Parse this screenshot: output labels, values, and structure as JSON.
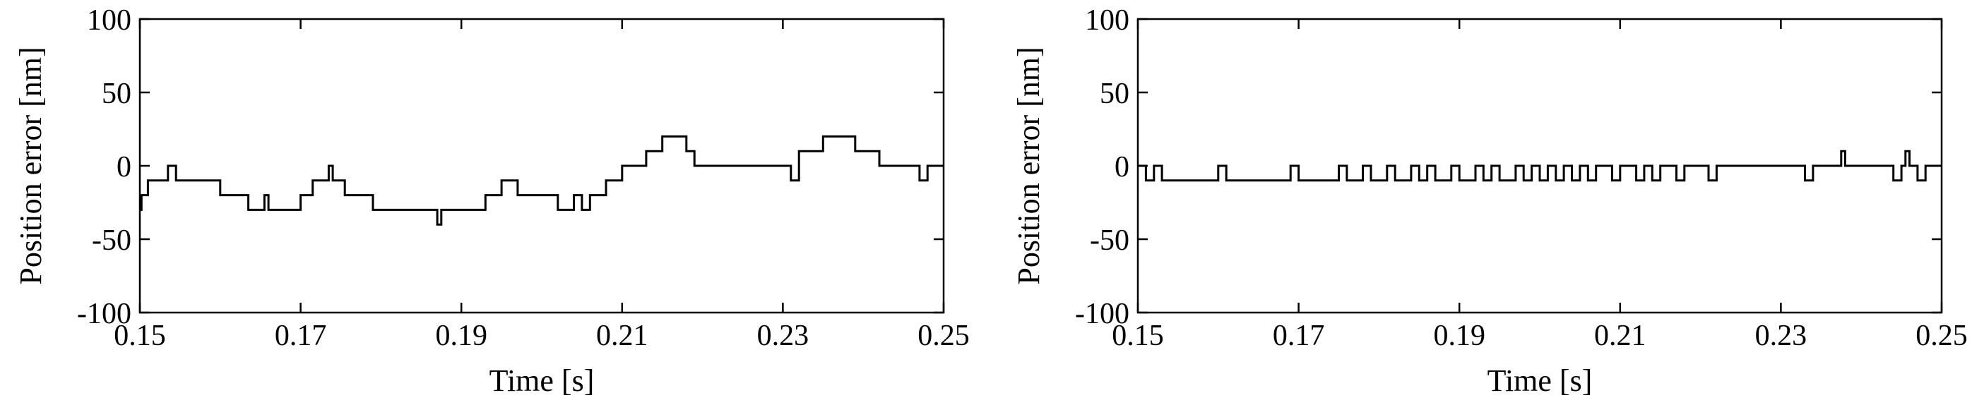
{
  "chart_data": [
    {
      "type": "line",
      "xlabel": "Time [s]",
      "ylabel": "Position error [nm]",
      "xlim": [
        0.15,
        0.25
      ],
      "ylim": [
        -100,
        100
      ],
      "xticks": [
        0.15,
        0.17,
        0.19,
        0.21,
        0.23,
        0.25
      ],
      "xtick_labels": [
        "0.15",
        "0.17",
        "0.19",
        "0.21",
        "0.23",
        "0.25"
      ],
      "yticks": [
        -100,
        -50,
        0,
        50,
        100
      ],
      "ytick_labels": [
        "-100",
        "-50",
        "0",
        "50",
        "100"
      ],
      "grid": false,
      "series": [
        {
          "color": "#000000",
          "x": [
            0.15,
            0.1502,
            0.1505,
            0.151,
            0.1515,
            0.1525,
            0.153,
            0.1535,
            0.1545,
            0.1555,
            0.156,
            0.157,
            0.158,
            0.159,
            0.16,
            0.1605,
            0.1615,
            0.1625,
            0.1635,
            0.1645,
            0.1655,
            0.166,
            0.167,
            0.168,
            0.169,
            0.17,
            0.171,
            0.1715,
            0.1725,
            0.1735,
            0.174,
            0.175,
            0.1755,
            0.176,
            0.177,
            0.178,
            0.179,
            0.18,
            0.181,
            0.182,
            0.183,
            0.184,
            0.185,
            0.186,
            0.187,
            0.1875,
            0.188,
            0.189,
            0.19,
            0.191,
            0.192,
            0.193,
            0.194,
            0.195,
            0.196,
            0.197,
            0.198,
            0.199,
            0.2,
            0.201,
            0.202,
            0.203,
            0.204,
            0.205,
            0.206,
            0.207,
            0.208,
            0.209,
            0.21,
            0.211,
            0.212,
            0.213,
            0.214,
            0.215,
            0.216,
            0.217,
            0.218,
            0.219,
            0.22,
            0.221,
            0.222,
            0.223,
            0.224,
            0.225,
            0.226,
            0.227,
            0.228,
            0.229,
            0.23,
            0.231,
            0.232,
            0.233,
            0.234,
            0.235,
            0.236,
            0.237,
            0.238,
            0.239,
            0.24,
            0.241,
            0.242,
            0.243,
            0.244,
            0.245,
            0.246,
            0.247,
            0.248,
            0.249,
            0.25
          ],
          "y": [
            -30,
            -20,
            -20,
            -10,
            -10,
            -10,
            -10,
            0,
            -10,
            -10,
            -10,
            -10,
            -10,
            -10,
            -20,
            -20,
            -20,
            -20,
            -30,
            -30,
            -20,
            -30,
            -30,
            -30,
            -30,
            -20,
            -20,
            -10,
            -10,
            0,
            -10,
            -10,
            -20,
            -20,
            -20,
            -20,
            -30,
            -30,
            -30,
            -30,
            -30,
            -30,
            -30,
            -30,
            -40,
            -30,
            -30,
            -30,
            -30,
            -30,
            -30,
            -20,
            -20,
            -10,
            -10,
            -20,
            -20,
            -20,
            -20,
            -20,
            -30,
            -30,
            -20,
            -30,
            -20,
            -20,
            -10,
            -10,
            0,
            0,
            0,
            10,
            10,
            20,
            20,
            20,
            10,
            0,
            0,
            0,
            0,
            0,
            0,
            0,
            0,
            0,
            0,
            0,
            0,
            -10,
            10,
            10,
            10,
            20,
            20,
            20,
            20,
            10,
            10,
            10,
            0,
            0,
            0,
            0,
            0,
            -10,
            0,
            0,
            0
          ]
        }
      ]
    },
    {
      "type": "line",
      "xlabel": "Time [s]",
      "ylabel": "Position error [nm]",
      "xlim": [
        0.15,
        0.25
      ],
      "ylim": [
        -100,
        100
      ],
      "xticks": [
        0.15,
        0.17,
        0.19,
        0.21,
        0.23,
        0.25
      ],
      "xtick_labels": [
        "0.15",
        "0.17",
        "0.19",
        "0.21",
        "0.23",
        "0.25"
      ],
      "yticks": [
        -100,
        -50,
        0,
        50,
        100
      ],
      "ytick_labels": [
        "-100",
        "-50",
        "0",
        "50",
        "100"
      ],
      "grid": false,
      "series": [
        {
          "color": "#000000",
          "x": [
            0.15,
            0.151,
            0.152,
            0.153,
            0.154,
            0.155,
            0.156,
            0.157,
            0.158,
            0.159,
            0.16,
            0.161,
            0.162,
            0.163,
            0.164,
            0.165,
            0.166,
            0.167,
            0.168,
            0.169,
            0.17,
            0.171,
            0.172,
            0.173,
            0.174,
            0.175,
            0.176,
            0.177,
            0.178,
            0.179,
            0.18,
            0.181,
            0.182,
            0.183,
            0.184,
            0.185,
            0.186,
            0.187,
            0.188,
            0.189,
            0.19,
            0.191,
            0.192,
            0.193,
            0.194,
            0.195,
            0.196,
            0.197,
            0.198,
            0.199,
            0.2,
            0.201,
            0.202,
            0.203,
            0.204,
            0.205,
            0.206,
            0.207,
            0.208,
            0.209,
            0.21,
            0.211,
            0.212,
            0.213,
            0.214,
            0.215,
            0.216,
            0.217,
            0.218,
            0.219,
            0.22,
            0.221,
            0.222,
            0.223,
            0.224,
            0.225,
            0.226,
            0.227,
            0.228,
            0.229,
            0.23,
            0.231,
            0.232,
            0.233,
            0.234,
            0.235,
            0.236,
            0.237,
            0.2375,
            0.238,
            0.239,
            0.24,
            0.241,
            0.242,
            0.243,
            0.244,
            0.245,
            0.2455,
            0.246,
            0.247,
            0.248,
            0.249,
            0.25
          ],
          "y": [
            0,
            -10,
            0,
            -10,
            -10,
            -10,
            -10,
            -10,
            -10,
            -10,
            0,
            -10,
            -10,
            -10,
            -10,
            -10,
            -10,
            -10,
            -10,
            0,
            -10,
            -10,
            -10,
            -10,
            -10,
            0,
            -10,
            -10,
            0,
            -10,
            -10,
            0,
            -10,
            -10,
            0,
            -10,
            0,
            -10,
            -10,
            0,
            -10,
            -10,
            0,
            -10,
            0,
            -10,
            -10,
            0,
            -10,
            0,
            -10,
            0,
            -10,
            0,
            -10,
            0,
            -10,
            0,
            0,
            -10,
            0,
            0,
            -10,
            0,
            -10,
            0,
            0,
            -10,
            0,
            0,
            0,
            -10,
            0,
            0,
            0,
            0,
            0,
            0,
            0,
            0,
            0,
            0,
            0,
            -10,
            0,
            0,
            0,
            0,
            10,
            0,
            0,
            0,
            0,
            0,
            0,
            -10,
            0,
            10,
            0,
            -10,
            0,
            0,
            0
          ]
        }
      ]
    }
  ]
}
